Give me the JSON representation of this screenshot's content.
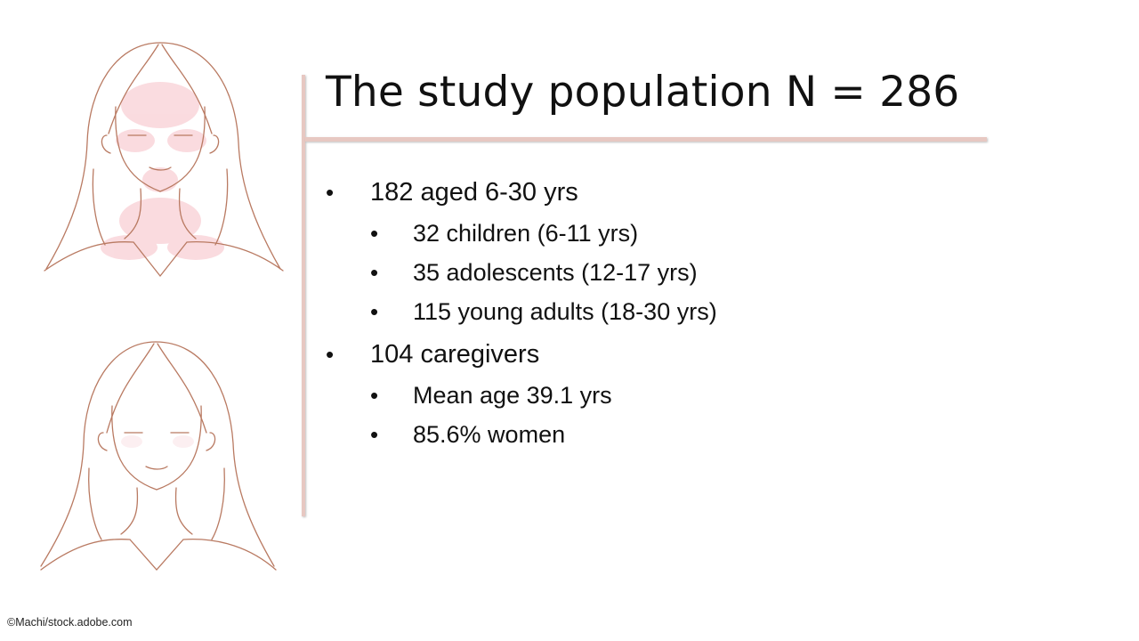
{
  "slide": {
    "title": "The study population N = 286",
    "bullets": [
      {
        "text": "182 aged 6-30 yrs",
        "sub": [
          "32 children (6-11 yrs)",
          "35 adolescents (12-17 yrs)",
          "115 young adults (18-30 yrs)"
        ]
      },
      {
        "text": "104 caregivers",
        "sub": [
          "Mean age 39.1 yrs",
          "85.6% women"
        ]
      }
    ],
    "bullet_glyph": "•",
    "credit": "©Machi/stock.adobe.com"
  },
  "colors": {
    "accent_line": "#e7c8c2",
    "sketch_stroke": "#b97a62",
    "rash": "#f19aa6"
  }
}
